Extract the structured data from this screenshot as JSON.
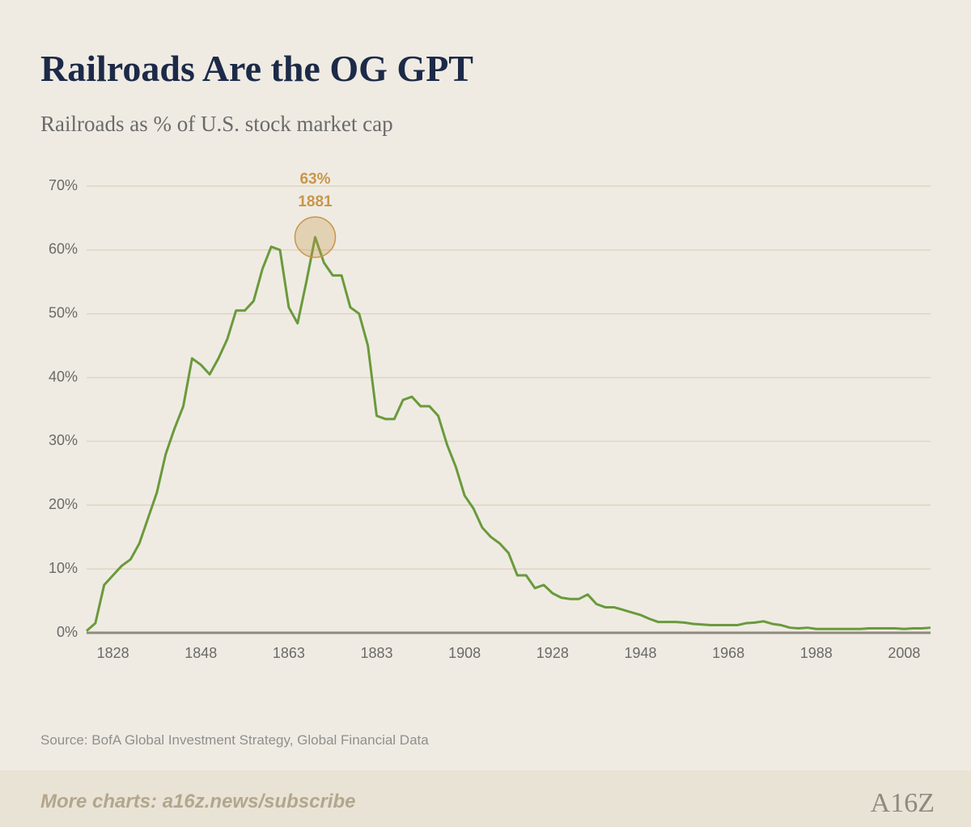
{
  "chart_data": {
    "type": "line",
    "title": "Railroads Are the OG GPT",
    "subtitle": "Railroads as % of U.S. stock market cap",
    "categories": [
      null,
      null,
      null,
      "1828",
      null,
      null,
      null,
      null,
      null,
      null,
      null,
      null,
      null,
      "1848",
      null,
      null,
      null,
      null,
      null,
      null,
      null,
      null,
      null,
      "1863",
      null,
      null,
      null,
      null,
      null,
      null,
      null,
      null,
      null,
      "1883",
      null,
      null,
      null,
      null,
      null,
      null,
      null,
      null,
      null,
      "1908",
      null,
      null,
      null,
      null,
      null,
      null,
      null,
      null,
      null,
      "1928",
      null,
      null,
      null,
      null,
      null,
      null,
      null,
      null,
      null,
      "1948",
      null,
      null,
      null,
      null,
      null,
      null,
      null,
      null,
      null,
      "1968",
      null,
      null,
      null,
      null,
      null,
      null,
      null,
      null,
      null,
      "1988",
      null,
      null,
      null,
      null,
      null,
      null,
      null,
      null,
      null,
      "2008",
      null,
      null,
      null
    ],
    "values": [
      0.3,
      1.5,
      7.5,
      9,
      10.5,
      11.5,
      14,
      18,
      22,
      28,
      32,
      35.5,
      43,
      42,
      40.5,
      43,
      46,
      50.5,
      50.5,
      52,
      57,
      60.5,
      60,
      51,
      48.5,
      55,
      62,
      58,
      56,
      56,
      51,
      50,
      45,
      34,
      33.5,
      33.5,
      36.5,
      37,
      35.5,
      35.5,
      34,
      29.5,
      26,
      21.5,
      19.5,
      16.5,
      15,
      14,
      12.5,
      9,
      9,
      7,
      7.5,
      6.2,
      5.5,
      5.3,
      5.3,
      6,
      4.5,
      4,
      4,
      3.6,
      3.2,
      2.8,
      2.2,
      1.7,
      1.7,
      1.7,
      1.6,
      1.4,
      1.3,
      1.2,
      1.2,
      1.2,
      1.2,
      1.5,
      1.6,
      1.8,
      1.4,
      1.2,
      0.8,
      0.7,
      0.8,
      0.6,
      0.6,
      0.6,
      0.6,
      0.6,
      0.6,
      0.7,
      0.7,
      0.7,
      0.7,
      0.6,
      0.7,
      0.7,
      0.8
    ],
    "color": "#6a9a3c",
    "ylim": [
      0,
      70
    ],
    "yticks": [
      {
        "value": 0,
        "label": "0%"
      },
      {
        "value": 10,
        "label": "10%"
      },
      {
        "value": 20,
        "label": "20%"
      },
      {
        "value": 30,
        "label": "30%"
      },
      {
        "value": 40,
        "label": "40%"
      },
      {
        "value": 50,
        "label": "50%"
      },
      {
        "value": 60,
        "label": "60%"
      },
      {
        "value": 70,
        "label": "70%"
      }
    ],
    "grid": true,
    "annotation": {
      "value": 63,
      "value_label": "63%",
      "year": "1881",
      "color": "#c8964a"
    },
    "source": "Source: BofA Global Investment Strategy, Global Financial Data",
    "footer": "More charts: a16z.news/subscribe",
    "logo": "A16Z"
  }
}
